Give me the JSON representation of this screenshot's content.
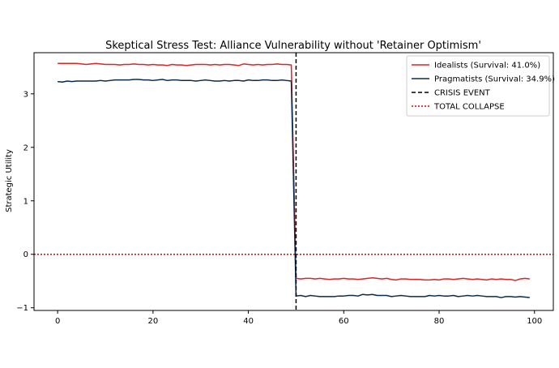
{
  "chart_data": {
    "type": "line",
    "title": "Skeptical Stress Test: Alliance Vulnerability without 'Retainer Optimism'",
    "xlabel": "",
    "ylabel": "Strategic Utility",
    "xlim": [
      -4.95,
      103.95
    ],
    "ylim": [
      -1.05,
      3.77
    ],
    "xticks": [
      0,
      20,
      40,
      60,
      80,
      100
    ],
    "yticks": [
      -1,
      0,
      1,
      2,
      3
    ],
    "grid": false,
    "legend_position": "top-right",
    "series": [
      {
        "name": "Idealists (Survival: 41.0%)",
        "color": "#d62728",
        "style": "solid",
        "x": [
          0,
          1,
          2,
          3,
          4,
          5,
          6,
          7,
          8,
          9,
          10,
          11,
          12,
          13,
          14,
          15,
          16,
          17,
          18,
          19,
          20,
          21,
          22,
          23,
          24,
          25,
          26,
          27,
          28,
          29,
          30,
          31,
          32,
          33,
          34,
          35,
          36,
          37,
          38,
          39,
          40,
          41,
          42,
          43,
          44,
          45,
          46,
          47,
          48,
          49,
          50,
          51,
          52,
          53,
          54,
          55,
          56,
          57,
          58,
          59,
          60,
          61,
          62,
          63,
          64,
          65,
          66,
          67,
          68,
          69,
          70,
          71,
          72,
          73,
          74,
          75,
          76,
          77,
          78,
          79,
          80,
          81,
          82,
          83,
          84,
          85,
          86,
          87,
          88,
          89,
          90,
          91,
          92,
          93,
          94,
          95,
          96,
          97,
          98,
          99
        ],
        "y": [
          3.57,
          3.57,
          3.57,
          3.57,
          3.57,
          3.56,
          3.55,
          3.56,
          3.57,
          3.56,
          3.55,
          3.55,
          3.55,
          3.54,
          3.55,
          3.55,
          3.56,
          3.55,
          3.55,
          3.54,
          3.55,
          3.54,
          3.54,
          3.53,
          3.55,
          3.54,
          3.54,
          3.53,
          3.54,
          3.55,
          3.55,
          3.55,
          3.54,
          3.55,
          3.54,
          3.55,
          3.55,
          3.54,
          3.53,
          3.56,
          3.55,
          3.54,
          3.55,
          3.54,
          3.55,
          3.55,
          3.56,
          3.55,
          3.55,
          3.54,
          -0.45,
          -0.46,
          -0.45,
          -0.45,
          -0.46,
          -0.45,
          -0.46,
          -0.47,
          -0.46,
          -0.46,
          -0.45,
          -0.46,
          -0.46,
          -0.47,
          -0.46,
          -0.45,
          -0.44,
          -0.45,
          -0.46,
          -0.45,
          -0.47,
          -0.48,
          -0.46,
          -0.46,
          -0.47,
          -0.47,
          -0.47,
          -0.48,
          -0.48,
          -0.47,
          -0.48,
          -0.46,
          -0.46,
          -0.47,
          -0.46,
          -0.45,
          -0.46,
          -0.47,
          -0.46,
          -0.47,
          -0.48,
          -0.46,
          -0.47,
          -0.46,
          -0.47,
          -0.47,
          -0.49,
          -0.46,
          -0.45,
          -0.46
        ]
      },
      {
        "name": "Pragmatists (Survival: 34.9%)",
        "color": "#0b2a4a",
        "style": "solid",
        "x": [
          0,
          1,
          2,
          3,
          4,
          5,
          6,
          7,
          8,
          9,
          10,
          11,
          12,
          13,
          14,
          15,
          16,
          17,
          18,
          19,
          20,
          21,
          22,
          23,
          24,
          25,
          26,
          27,
          28,
          29,
          30,
          31,
          32,
          33,
          34,
          35,
          36,
          37,
          38,
          39,
          40,
          41,
          42,
          43,
          44,
          45,
          46,
          47,
          48,
          49,
          50,
          51,
          52,
          53,
          54,
          55,
          56,
          57,
          58,
          59,
          60,
          61,
          62,
          63,
          64,
          65,
          66,
          67,
          68,
          69,
          70,
          71,
          72,
          73,
          74,
          75,
          76,
          77,
          78,
          79,
          80,
          81,
          82,
          83,
          84,
          85,
          86,
          87,
          88,
          89,
          90,
          91,
          92,
          93,
          94,
          95,
          96,
          97,
          98,
          99
        ],
        "y": [
          3.23,
          3.22,
          3.24,
          3.23,
          3.24,
          3.24,
          3.24,
          3.24,
          3.24,
          3.25,
          3.24,
          3.25,
          3.26,
          3.26,
          3.26,
          3.26,
          3.27,
          3.27,
          3.26,
          3.26,
          3.25,
          3.26,
          3.27,
          3.25,
          3.26,
          3.26,
          3.25,
          3.25,
          3.25,
          3.24,
          3.25,
          3.26,
          3.25,
          3.24,
          3.24,
          3.25,
          3.24,
          3.25,
          3.25,
          3.24,
          3.26,
          3.25,
          3.25,
          3.26,
          3.26,
          3.25,
          3.25,
          3.26,
          3.25,
          3.24,
          -0.78,
          -0.77,
          -0.79,
          -0.77,
          -0.78,
          -0.79,
          -0.79,
          -0.79,
          -0.79,
          -0.78,
          -0.78,
          -0.77,
          -0.77,
          -0.78,
          -0.75,
          -0.76,
          -0.75,
          -0.77,
          -0.77,
          -0.77,
          -0.79,
          -0.78,
          -0.77,
          -0.78,
          -0.79,
          -0.79,
          -0.79,
          -0.79,
          -0.77,
          -0.78,
          -0.77,
          -0.78,
          -0.78,
          -0.77,
          -0.79,
          -0.78,
          -0.77,
          -0.78,
          -0.77,
          -0.78,
          -0.79,
          -0.79,
          -0.79,
          -0.81,
          -0.79,
          -0.79,
          -0.8,
          -0.79,
          -0.8,
          -0.81
        ]
      }
    ],
    "reference_lines": [
      {
        "name": "CRISIS EVENT",
        "orientation": "vertical",
        "value": 50,
        "color": "#000000",
        "style": "dashed"
      },
      {
        "name": "TOTAL COLLAPSE",
        "orientation": "horizontal",
        "value": 0,
        "color": "#e00000",
        "style": "dotted"
      }
    ]
  }
}
